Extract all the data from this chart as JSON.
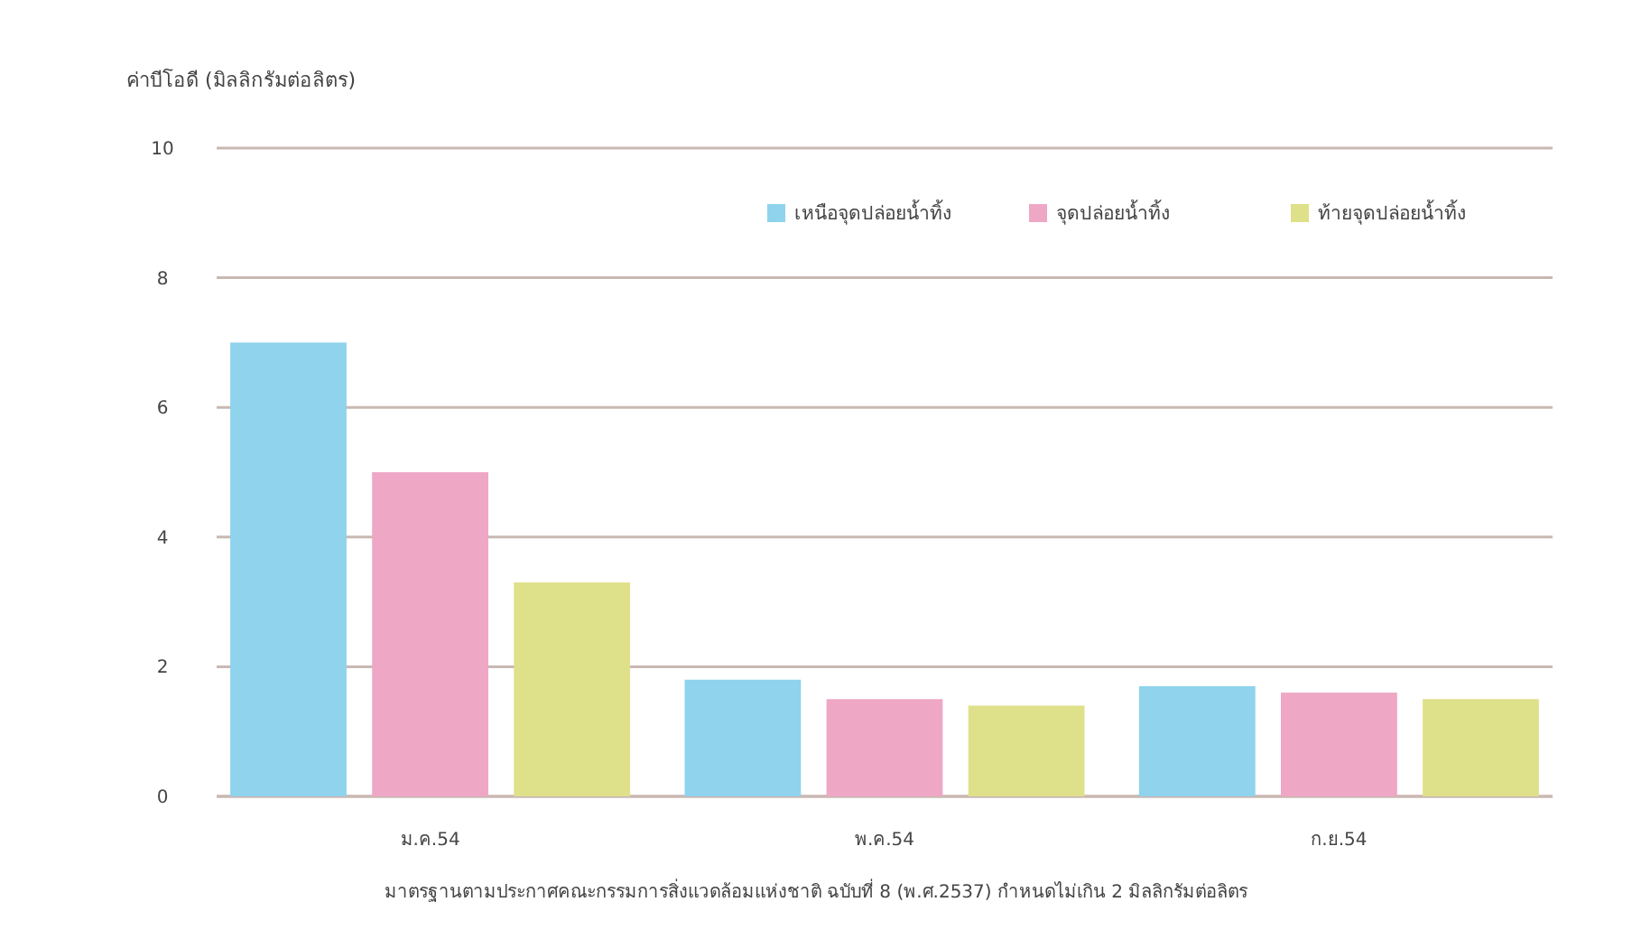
{
  "chart_data": {
    "type": "bar",
    "ylabel": "ค่าบีโอดี (มิลลิกรัมต่อลิตร)",
    "categories": [
      "ม.ค.54",
      "พ.ค.54",
      "ก.ย.54"
    ],
    "series": [
      {
        "name": "เหนือจุดปล่อยน้ำทิ้ง",
        "color": "#8fd3ec",
        "values": [
          7.0,
          1.8,
          1.7
        ]
      },
      {
        "name": "จุดปล่อยน้ำทิ้ง",
        "color": "#efa7c6",
        "values": [
          5.0,
          1.5,
          1.6
        ]
      },
      {
        "name": "ท้ายจุดปล่อยน้ำทิ้ง",
        "color": "#dfe08a",
        "values": [
          3.3,
          1.4,
          1.5
        ]
      }
    ],
    "ylim": [
      0,
      10
    ],
    "yticks": [
      0,
      2,
      4,
      6,
      8,
      10
    ],
    "grid": "y",
    "legend": "top right",
    "annotations": [
      "มาตรฐานตามประกาศคณะกรรมการสิ่งแวดล้อมแห่งชาติ ฉบับที่ 8 (พ.ศ.2537) กำหนดไม่เกิน 2 มิลลิกรัมต่อลิตร"
    ]
  }
}
